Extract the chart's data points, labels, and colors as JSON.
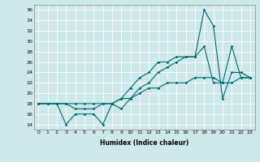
{
  "xlabel": "Humidex (Indice chaleur)",
  "ylabel": "",
  "bg_color": "#cce8e8",
  "line_color": "#006666",
  "grid_color": "#ffffff",
  "xlim": [
    -0.5,
    23.5
  ],
  "ylim": [
    13,
    37
  ],
  "yticks": [
    14,
    16,
    18,
    20,
    22,
    24,
    26,
    28,
    30,
    32,
    34,
    36
  ],
  "xticks": [
    0,
    1,
    2,
    3,
    4,
    5,
    6,
    7,
    8,
    9,
    10,
    11,
    12,
    13,
    14,
    15,
    16,
    17,
    18,
    19,
    20,
    21,
    22,
    23
  ],
  "line1_x": [
    0,
    1,
    2,
    3,
    4,
    5,
    6,
    7,
    8,
    9,
    10,
    11,
    12,
    13,
    14,
    15,
    16,
    17,
    18,
    19,
    20,
    21,
    22,
    23
  ],
  "line1_y": [
    18,
    18,
    18,
    14,
    16,
    16,
    16,
    14,
    18,
    17,
    19,
    21,
    22,
    24,
    25,
    26,
    27,
    27,
    36,
    33,
    19,
    24,
    24,
    23
  ],
  "line2_x": [
    0,
    1,
    2,
    3,
    4,
    5,
    6,
    7,
    8,
    9,
    10,
    11,
    12,
    13,
    14,
    15,
    16,
    17,
    18,
    19,
    20,
    21,
    22,
    23
  ],
  "line2_y": [
    18,
    18,
    18,
    18,
    17,
    17,
    17,
    18,
    18,
    19,
    21,
    23,
    24,
    26,
    26,
    27,
    27,
    27,
    29,
    22,
    22,
    29,
    23,
    23
  ],
  "line3_x": [
    0,
    1,
    2,
    3,
    4,
    5,
    6,
    7,
    8,
    9,
    10,
    11,
    12,
    13,
    14,
    15,
    16,
    17,
    18,
    19,
    20,
    21,
    22,
    23
  ],
  "line3_y": [
    18,
    18,
    18,
    18,
    18,
    18,
    18,
    18,
    18,
    19,
    19,
    20,
    21,
    21,
    22,
    22,
    22,
    23,
    23,
    23,
    22,
    22,
    23,
    23
  ]
}
